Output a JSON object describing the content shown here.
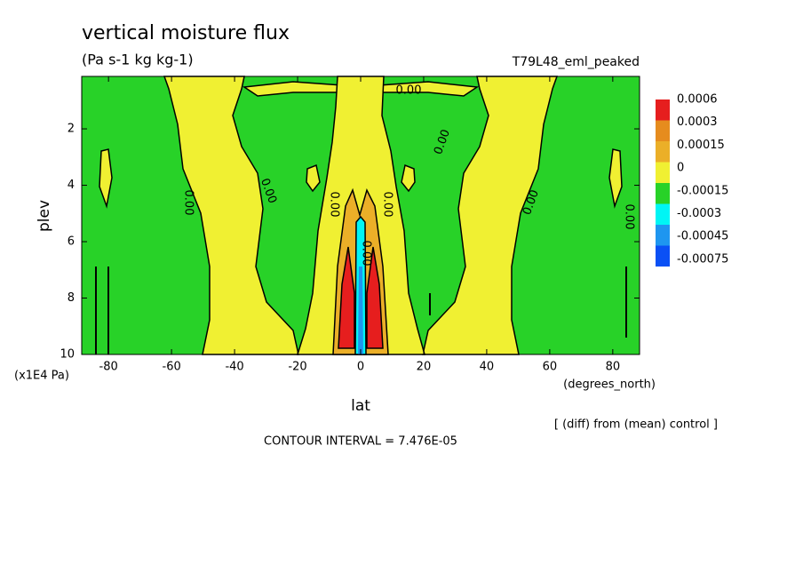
{
  "chart_data": {
    "type": "contour",
    "title": "vertical moisture flux",
    "subtitle": "(Pa s-1 kg kg-1)",
    "run_label": "T79L48_eml_peaked",
    "x_label": "lat",
    "x_unit": "(degrees_north)",
    "y_label": "plev",
    "y_unit": "(x1E4 Pa)",
    "note": "[ (diff) from (mean) control ]",
    "contour_interval": "CONTOUR INTERVAL = 7.476E-05",
    "xlim": [
      -88.5,
      88.5
    ],
    "xticks": [
      -80,
      -60,
      -40,
      -20,
      0,
      20,
      40,
      60,
      80
    ],
    "ylim": [
      0.14,
      10
    ],
    "yticks": [
      2,
      4,
      6,
      8,
      10
    ],
    "y_inverted": true,
    "levels": [
      0.0006,
      0.0003,
      0.00015,
      0,
      -0.00015,
      -0.0003,
      -0.00045,
      -0.00075
    ],
    "level_colors": [
      "#e61e1e",
      "#e68c1e",
      "#ebaf28",
      "#f0f032",
      "#28d228",
      "#00f5f5",
      "#1e96f0",
      "#0a50f5"
    ],
    "contour_labels": [
      "0.00",
      "0.00",
      "0.00",
      "0.00",
      "0.00",
      "0.00",
      "0.00",
      "0.00",
      "0.00"
    ]
  }
}
